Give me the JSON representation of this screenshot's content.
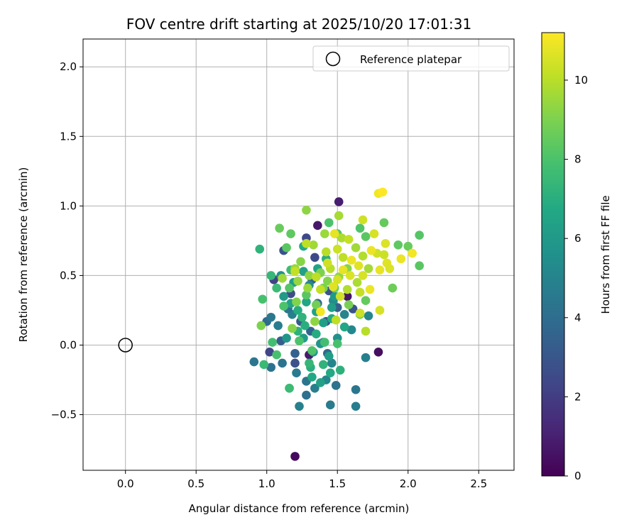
{
  "chart_data": {
    "type": "scatter",
    "title": "FOV centre drift starting at 2025/10/20 17:01:31",
    "xlabel": "Angular distance from reference (arcmin)",
    "ylabel": "Rotation from reference (arcmin)",
    "xlim": [
      -0.3,
      2.75
    ],
    "ylim": [
      -0.9,
      2.2
    ],
    "xticks": [
      "0.0",
      "0.5",
      "1.0",
      "1.5",
      "2.0",
      "2.5"
    ],
    "yticks": [
      "−0.5",
      "0.0",
      "0.5",
      "1.0",
      "1.5",
      "2.0"
    ],
    "grid": true,
    "legend": {
      "position": "top-right",
      "entries": [
        "Reference platepar"
      ]
    },
    "reference_point": {
      "x": 0.0,
      "y": 0.0
    },
    "colorbar": {
      "label": "Hours from first FF file",
      "colormap": "viridis",
      "range": [
        0,
        11.2
      ],
      "ticks": [
        "0",
        "2",
        "4",
        "6",
        "8",
        "10"
      ]
    },
    "points": [
      {
        "x": 1.2,
        "y": -0.8,
        "h": 0.3
      },
      {
        "x": 1.79,
        "y": -0.05,
        "h": 0.4
      },
      {
        "x": 1.51,
        "y": 1.03,
        "h": 0.9
      },
      {
        "x": 1.36,
        "y": 0.86,
        "h": 0.7
      },
      {
        "x": 1.57,
        "y": 0.35,
        "h": 0.6
      },
      {
        "x": 1.3,
        "y": -0.07,
        "h": 0.8
      },
      {
        "x": 1.28,
        "y": 0.77,
        "h": 2.4
      },
      {
        "x": 1.12,
        "y": 0.68,
        "h": 2.8
      },
      {
        "x": 1.05,
        "y": 0.47,
        "h": 2.2
      },
      {
        "x": 1.34,
        "y": 0.63,
        "h": 2.5
      },
      {
        "x": 1.44,
        "y": 0.39,
        "h": 2.9
      },
      {
        "x": 1.17,
        "y": 0.37,
        "h": 2.6
      },
      {
        "x": 1.24,
        "y": 0.17,
        "h": 3.2
      },
      {
        "x": 1.42,
        "y": 0.17,
        "h": 3.0
      },
      {
        "x": 1.1,
        "y": 0.03,
        "h": 3.3
      },
      {
        "x": 1.02,
        "y": -0.05,
        "h": 2.3
      },
      {
        "x": 1.2,
        "y": -0.13,
        "h": 2.8
      },
      {
        "x": 1.5,
        "y": 0.27,
        "h": 3.4
      },
      {
        "x": 1.61,
        "y": 0.26,
        "h": 2.9
      },
      {
        "x": 1.36,
        "y": 0.3,
        "h": 3.8
      },
      {
        "x": 1.32,
        "y": 0.47,
        "h": 3.6
      },
      {
        "x": 1.0,
        "y": 0.17,
        "h": 3.9
      },
      {
        "x": 1.31,
        "y": 0.1,
        "h": 3.6
      },
      {
        "x": 1.2,
        "y": -0.06,
        "h": 3.5
      },
      {
        "x": 1.43,
        "y": -0.06,
        "h": 3.7
      },
      {
        "x": 1.03,
        "y": -0.16,
        "h": 4.2
      },
      {
        "x": 0.91,
        "y": -0.12,
        "h": 4.4
      },
      {
        "x": 1.11,
        "y": -0.13,
        "h": 4.3
      },
      {
        "x": 1.21,
        "y": -0.2,
        "h": 4.6
      },
      {
        "x": 1.28,
        "y": -0.26,
        "h": 4.4
      },
      {
        "x": 1.34,
        "y": -0.31,
        "h": 4.8
      },
      {
        "x": 1.28,
        "y": -0.36,
        "h": 4.1
      },
      {
        "x": 1.23,
        "y": -0.44,
        "h": 4.9
      },
      {
        "x": 1.45,
        "y": -0.43,
        "h": 4.6
      },
      {
        "x": 1.63,
        "y": -0.44,
        "h": 4.7
      },
      {
        "x": 1.63,
        "y": -0.32,
        "h": 4.4
      },
      {
        "x": 1.49,
        "y": -0.29,
        "h": 4.2
      },
      {
        "x": 1.42,
        "y": -0.25,
        "h": 5.2
      },
      {
        "x": 1.46,
        "y": -0.13,
        "h": 5.0
      },
      {
        "x": 1.7,
        "y": -0.09,
        "h": 4.8
      },
      {
        "x": 1.03,
        "y": 0.2,
        "h": 4.5
      },
      {
        "x": 1.08,
        "y": 0.14,
        "h": 4.7
      },
      {
        "x": 1.18,
        "y": 0.22,
        "h": 4.9
      },
      {
        "x": 1.15,
        "y": 0.26,
        "h": 4.4
      },
      {
        "x": 1.4,
        "y": 0.02,
        "h": 4.6
      },
      {
        "x": 1.55,
        "y": 0.22,
        "h": 5.0
      },
      {
        "x": 1.72,
        "y": 0.21,
        "h": 5.1
      },
      {
        "x": 1.6,
        "y": 0.11,
        "h": 5.2
      },
      {
        "x": 1.3,
        "y": 0.43,
        "h": 5.3
      },
      {
        "x": 1.47,
        "y": 0.32,
        "h": 5.4
      },
      {
        "x": 1.5,
        "y": 0.05,
        "h": 5.6
      },
      {
        "x": 1.38,
        "y": 0.01,
        "h": 5.8
      },
      {
        "x": 1.26,
        "y": 0.05,
        "h": 6.1
      },
      {
        "x": 1.14,
        "y": 0.05,
        "h": 5.9
      },
      {
        "x": 1.33,
        "y": -0.05,
        "h": 6.0
      },
      {
        "x": 1.44,
        "y": -0.08,
        "h": 6.2
      },
      {
        "x": 1.38,
        "y": -0.27,
        "h": 6.4
      },
      {
        "x": 1.45,
        "y": -0.2,
        "h": 6.8
      },
      {
        "x": 1.32,
        "y": -0.23,
        "h": 6.7
      },
      {
        "x": 1.31,
        "y": -0.16,
        "h": 7.0
      },
      {
        "x": 1.4,
        "y": -0.14,
        "h": 7.2
      },
      {
        "x": 1.52,
        "y": -0.18,
        "h": 7.1
      },
      {
        "x": 1.16,
        "y": -0.31,
        "h": 7.3
      },
      {
        "x": 1.3,
        "y": -0.13,
        "h": 7.4
      },
      {
        "x": 1.17,
        "y": 0.3,
        "h": 6.5
      },
      {
        "x": 1.12,
        "y": 0.35,
        "h": 6.1
      },
      {
        "x": 1.22,
        "y": 0.25,
        "h": 6.9
      },
      {
        "x": 1.28,
        "y": 0.31,
        "h": 6.6
      },
      {
        "x": 1.35,
        "y": 0.24,
        "h": 6.4
      },
      {
        "x": 1.4,
        "y": 0.16,
        "h": 6.3
      },
      {
        "x": 1.46,
        "y": 0.19,
        "h": 6.8
      },
      {
        "x": 1.27,
        "y": 0.14,
        "h": 7.0
      },
      {
        "x": 1.22,
        "y": 0.1,
        "h": 7.1
      },
      {
        "x": 1.35,
        "y": 0.08,
        "h": 6.9
      },
      {
        "x": 1.25,
        "y": 0.2,
        "h": 7.2
      },
      {
        "x": 1.46,
        "y": 0.27,
        "h": 6.2
      },
      {
        "x": 1.48,
        "y": 0.35,
        "h": 6.0
      },
      {
        "x": 1.55,
        "y": 0.13,
        "h": 6.6
      },
      {
        "x": 1.19,
        "y": 0.45,
        "h": 6.3
      },
      {
        "x": 1.1,
        "y": 0.5,
        "h": 5.6
      },
      {
        "x": 1.26,
        "y": 0.53,
        "h": 6.4
      },
      {
        "x": 1.36,
        "y": 0.55,
        "h": 6.5
      },
      {
        "x": 1.26,
        "y": 0.71,
        "h": 6.8
      },
      {
        "x": 1.42,
        "y": 0.62,
        "h": 7.0
      },
      {
        "x": 0.95,
        "y": 0.69,
        "h": 7.2
      },
      {
        "x": 0.98,
        "y": -0.14,
        "h": 7.5
      },
      {
        "x": 1.16,
        "y": -0.31,
        "h": 7.6
      },
      {
        "x": 1.04,
        "y": 0.02,
        "h": 7.8
      },
      {
        "x": 1.07,
        "y": -0.07,
        "h": 7.9
      },
      {
        "x": 1.23,
        "y": 0.03,
        "h": 8.0
      },
      {
        "x": 1.32,
        "y": -0.04,
        "h": 8.1
      },
      {
        "x": 1.41,
        "y": 0.02,
        "h": 7.8
      },
      {
        "x": 1.5,
        "y": 0.01,
        "h": 7.9
      },
      {
        "x": 1.12,
        "y": 0.28,
        "h": 8.0
      },
      {
        "x": 1.16,
        "y": 0.41,
        "h": 8.2
      },
      {
        "x": 1.28,
        "y": 0.36,
        "h": 8.3
      },
      {
        "x": 0.97,
        "y": 0.33,
        "h": 7.9
      },
      {
        "x": 1.07,
        "y": 0.41,
        "h": 7.6
      },
      {
        "x": 1.03,
        "y": 0.5,
        "h": 7.4
      },
      {
        "x": 1.17,
        "y": 0.54,
        "h": 7.7
      },
      {
        "x": 1.14,
        "y": 0.7,
        "h": 8.3
      },
      {
        "x": 1.17,
        "y": 0.8,
        "h": 8.4
      },
      {
        "x": 1.09,
        "y": 0.84,
        "h": 8.6
      },
      {
        "x": 1.44,
        "y": 0.88,
        "h": 8.0
      },
      {
        "x": 1.5,
        "y": 0.8,
        "h": 8.2
      },
      {
        "x": 1.66,
        "y": 0.84,
        "h": 8.1
      },
      {
        "x": 1.7,
        "y": 0.78,
        "h": 8.3
      },
      {
        "x": 1.83,
        "y": 0.88,
        "h": 8.5
      },
      {
        "x": 1.93,
        "y": 0.72,
        "h": 8.4
      },
      {
        "x": 2.0,
        "y": 0.71,
        "h": 8.6
      },
      {
        "x": 2.08,
        "y": 0.79,
        "h": 8.2
      },
      {
        "x": 2.08,
        "y": 0.57,
        "h": 8.3
      },
      {
        "x": 1.89,
        "y": 0.41,
        "h": 8.7
      },
      {
        "x": 1.7,
        "y": 0.32,
        "h": 8.5
      },
      {
        "x": 1.66,
        "y": 0.22,
        "h": 8.8
      },
      {
        "x": 1.58,
        "y": 0.29,
        "h": 8.9
      },
      {
        "x": 1.48,
        "y": 0.41,
        "h": 8.7
      },
      {
        "x": 1.4,
        "y": 0.41,
        "h": 9.0
      },
      {
        "x": 1.35,
        "y": 0.29,
        "h": 8.8
      },
      {
        "x": 1.21,
        "y": 0.31,
        "h": 9.1
      },
      {
        "x": 1.18,
        "y": 0.12,
        "h": 9.2
      },
      {
        "x": 0.96,
        "y": 0.14,
        "h": 9.0
      },
      {
        "x": 1.34,
        "y": 0.17,
        "h": 9.3
      },
      {
        "x": 1.43,
        "y": 0.46,
        "h": 9.1
      },
      {
        "x": 1.51,
        "y": 0.49,
        "h": 9.4
      },
      {
        "x": 1.57,
        "y": 0.55,
        "h": 9.2
      },
      {
        "x": 1.38,
        "y": 0.52,
        "h": 9.0
      },
      {
        "x": 1.3,
        "y": 0.5,
        "h": 9.3
      },
      {
        "x": 1.29,
        "y": 0.41,
        "h": 9.5
      },
      {
        "x": 1.22,
        "y": 0.46,
        "h": 9.4
      },
      {
        "x": 1.11,
        "y": 0.48,
        "h": 9.6
      },
      {
        "x": 1.2,
        "y": 0.55,
        "h": 9.5
      },
      {
        "x": 1.24,
        "y": 0.6,
        "h": 9.2
      },
      {
        "x": 1.33,
        "y": 0.72,
        "h": 9.6
      },
      {
        "x": 1.28,
        "y": 0.97,
        "h": 9.3
      },
      {
        "x": 1.51,
        "y": 0.93,
        "h": 9.7
      },
      {
        "x": 1.41,
        "y": 0.8,
        "h": 9.5
      },
      {
        "x": 1.53,
        "y": 0.77,
        "h": 9.8
      },
      {
        "x": 1.63,
        "y": 0.7,
        "h": 9.6
      },
      {
        "x": 1.68,
        "y": 0.64,
        "h": 9.9
      },
      {
        "x": 1.72,
        "y": 0.55,
        "h": 9.7
      },
      {
        "x": 1.64,
        "y": 0.45,
        "h": 9.8
      },
      {
        "x": 1.57,
        "y": 0.4,
        "h": 9.9
      },
      {
        "x": 1.45,
        "y": 0.55,
        "h": 10.0
      },
      {
        "x": 1.54,
        "y": 0.63,
        "h": 10.1
      },
      {
        "x": 1.42,
        "y": 0.67,
        "h": 10.0
      },
      {
        "x": 1.38,
        "y": 0.4,
        "h": 10.2
      },
      {
        "x": 1.49,
        "y": 0.18,
        "h": 10.1
      },
      {
        "x": 1.66,
        "y": 0.38,
        "h": 10.2
      },
      {
        "x": 1.7,
        "y": 0.1,
        "h": 10.0
      },
      {
        "x": 1.68,
        "y": 0.9,
        "h": 10.4
      },
      {
        "x": 1.76,
        "y": 0.8,
        "h": 10.5
      },
      {
        "x": 1.84,
        "y": 0.73,
        "h": 10.6
      },
      {
        "x": 1.78,
        "y": 0.66,
        "h": 10.4
      },
      {
        "x": 1.83,
        "y": 0.65,
        "h": 10.3
      },
      {
        "x": 1.85,
        "y": 0.59,
        "h": 10.7
      },
      {
        "x": 1.8,
        "y": 0.54,
        "h": 10.8
      },
      {
        "x": 1.87,
        "y": 0.55,
        "h": 10.6
      },
      {
        "x": 1.95,
        "y": 0.62,
        "h": 10.9
      },
      {
        "x": 2.03,
        "y": 0.66,
        "h": 11.0
      },
      {
        "x": 1.74,
        "y": 0.68,
        "h": 10.9
      },
      {
        "x": 1.68,
        "y": 0.5,
        "h": 10.5
      },
      {
        "x": 1.59,
        "y": 0.5,
        "h": 10.6
      },
      {
        "x": 1.54,
        "y": 0.54,
        "h": 10.8
      },
      {
        "x": 1.5,
        "y": 0.47,
        "h": 10.5
      },
      {
        "x": 1.47,
        "y": 0.42,
        "h": 10.7
      },
      {
        "x": 1.52,
        "y": 0.35,
        "h": 10.4
      },
      {
        "x": 1.73,
        "y": 0.4,
        "h": 10.9
      },
      {
        "x": 1.79,
        "y": 1.09,
        "h": 11.0
      },
      {
        "x": 1.82,
        "y": 1.1,
        "h": 11.2
      },
      {
        "x": 1.66,
        "y": 0.23,
        "h": 10.3
      },
      {
        "x": 1.8,
        "y": 0.25,
        "h": 10.5
      },
      {
        "x": 1.38,
        "y": 0.24,
        "h": 11.0
      },
      {
        "x": 1.48,
        "y": 0.8,
        "h": 10.8
      },
      {
        "x": 1.58,
        "y": 0.76,
        "h": 10.2
      },
      {
        "x": 1.28,
        "y": 0.73,
        "h": 10.1
      },
      {
        "x": 1.5,
        "y": 0.69,
        "h": 10.3
      },
      {
        "x": 1.43,
        "y": 0.59,
        "h": 10.4
      },
      {
        "x": 1.2,
        "y": 0.53,
        "h": 10.2
      },
      {
        "x": 1.6,
        "y": 0.61,
        "h": 10.9
      },
      {
        "x": 1.65,
        "y": 0.57,
        "h": 10.7
      },
      {
        "x": 1.35,
        "y": 0.49,
        "h": 10.1
      }
    ]
  }
}
